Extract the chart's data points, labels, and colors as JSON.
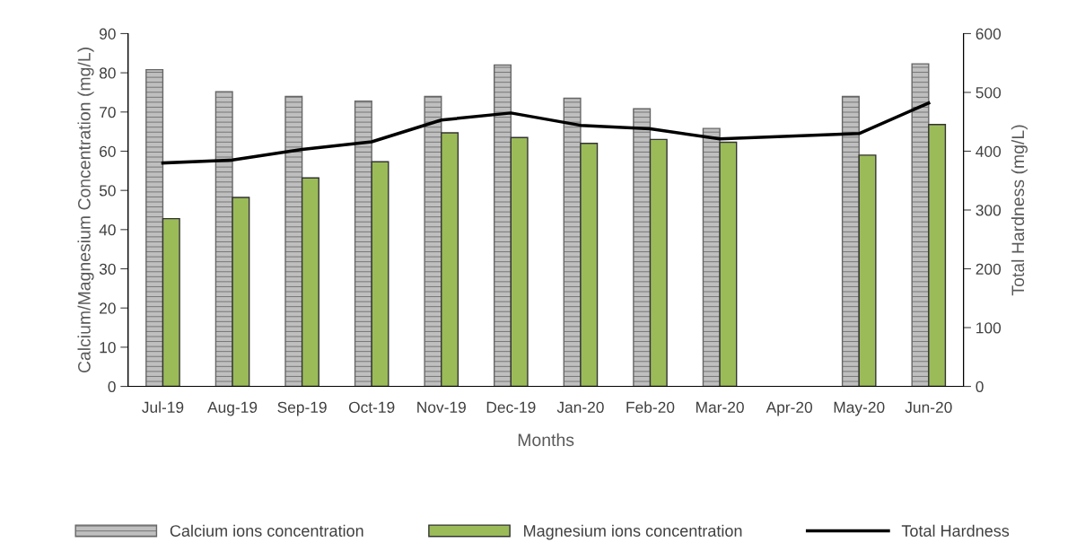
{
  "chart_data": {
    "type": "bar",
    "categories": [
      "Jul-19",
      "Aug-19",
      "Sep-19",
      "Oct-19",
      "Nov-19",
      "Dec-19",
      "Jan-20",
      "Feb-20",
      "Mar-20",
      "Apr-20",
      "May-20",
      "Jun-20"
    ],
    "series": [
      {
        "name": "Calcium ions concentration",
        "color": "#666666",
        "values": [
          80.8,
          75.2,
          74,
          72.8,
          74,
          82,
          73.5,
          70.8,
          65.8,
          null,
          74,
          82.3
        ]
      },
      {
        "name": "Magnesium ions concentration",
        "color": "#9bbb59",
        "values": [
          42.8,
          48.2,
          53.2,
          57.3,
          64.7,
          63.5,
          62,
          63,
          62.3,
          null,
          59,
          66.8
        ]
      },
      {
        "name": "Total Hardness",
        "type": "line",
        "axis": "y2",
        "color": "#000000",
        "values": [
          380,
          385,
          403,
          416,
          453,
          465,
          444,
          438,
          421,
          null,
          430,
          482
        ]
      }
    ],
    "xlabel": "Months",
    "ylabel": "Calcium/Magnesium Concentration (mg/L)",
    "y2label": "Total Hardness (mg/L)",
    "ylim": [
      0,
      90
    ],
    "yticks": [
      0,
      10,
      20,
      30,
      40,
      50,
      60,
      70,
      80,
      90
    ],
    "y2lim": [
      0,
      600
    ],
    "y2ticks": [
      0,
      100,
      200,
      300,
      400,
      500,
      600
    ],
    "grid": false,
    "legend": "bottom",
    "marker": "none",
    "line_style": "solid"
  }
}
